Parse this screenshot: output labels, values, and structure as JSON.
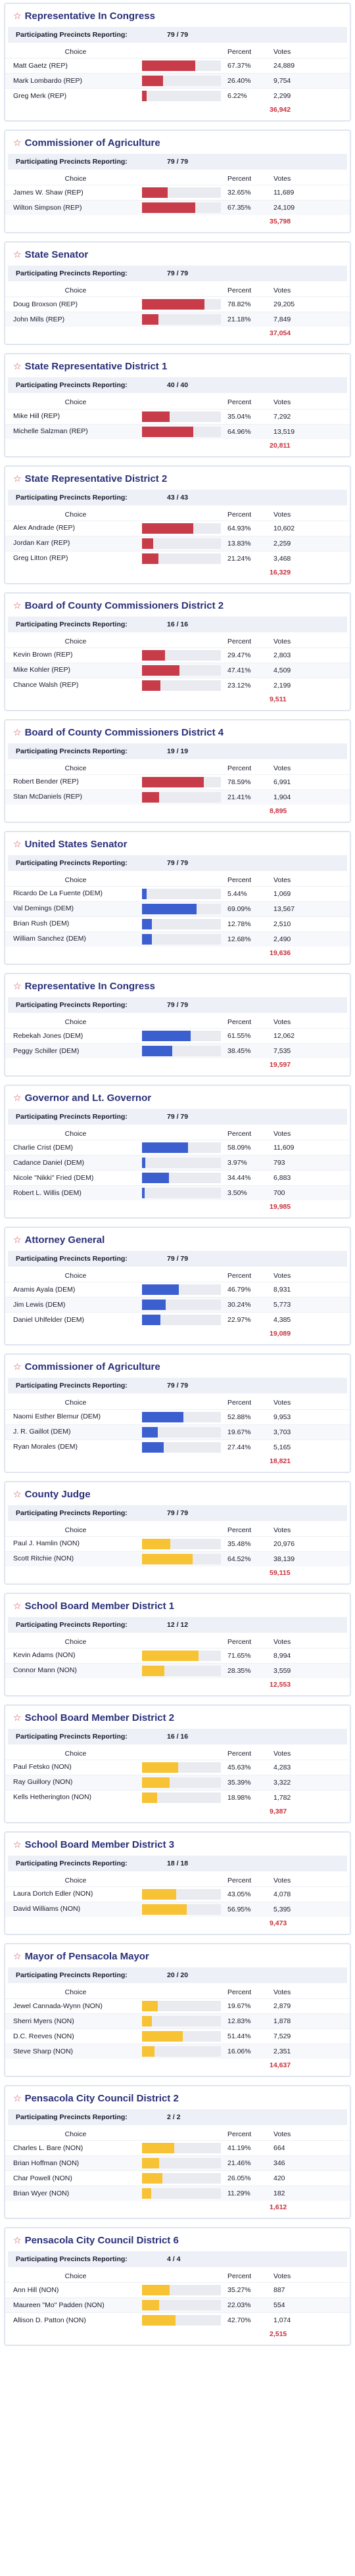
{
  "labels": {
    "precincts_label": "Participating Precincts Reporting:",
    "choice": "Choice",
    "percent": "Percent",
    "votes": "Votes"
  },
  "colors": {
    "REP": "#c83c4a",
    "DEM": "#3c5fd0",
    "NON": "#f7c233"
  },
  "races": [
    {
      "title": "Representative In Congress",
      "precincts": "79 / 79",
      "party": "REP",
      "total": "36,942",
      "candidates": [
        {
          "name": "Matt Gaetz (REP)",
          "percent": "67.37%",
          "pct": 67.37,
          "votes": "24,889"
        },
        {
          "name": "Mark Lombardo (REP)",
          "percent": "26.40%",
          "pct": 26.4,
          "votes": "9,754"
        },
        {
          "name": "Greg Merk (REP)",
          "percent": "6.22%",
          "pct": 6.22,
          "votes": "2,299"
        }
      ]
    },
    {
      "title": "Commissioner of Agriculture",
      "precincts": "79 / 79",
      "party": "REP",
      "total": "35,798",
      "candidates": [
        {
          "name": "James W. Shaw (REP)",
          "percent": "32.65%",
          "pct": 32.65,
          "votes": "11,689"
        },
        {
          "name": "Wilton Simpson (REP)",
          "percent": "67.35%",
          "pct": 67.35,
          "votes": "24,109"
        }
      ]
    },
    {
      "title": "State Senator",
      "precincts": "79 / 79",
      "party": "REP",
      "total": "37,054",
      "candidates": [
        {
          "name": "Doug Broxson (REP)",
          "percent": "78.82%",
          "pct": 78.82,
          "votes": "29,205"
        },
        {
          "name": "John Mills (REP)",
          "percent": "21.18%",
          "pct": 21.18,
          "votes": "7,849"
        }
      ]
    },
    {
      "title": "State Representative District 1",
      "precincts": "40 / 40",
      "party": "REP",
      "total": "20,811",
      "candidates": [
        {
          "name": "Mike Hill (REP)",
          "percent": "35.04%",
          "pct": 35.04,
          "votes": "7,292"
        },
        {
          "name": "Michelle Salzman (REP)",
          "percent": "64.96%",
          "pct": 64.96,
          "votes": "13,519"
        }
      ]
    },
    {
      "title": "State Representative District 2",
      "precincts": "43 / 43",
      "party": "REP",
      "total": "16,329",
      "candidates": [
        {
          "name": "Alex Andrade (REP)",
          "percent": "64.93%",
          "pct": 64.93,
          "votes": "10,602"
        },
        {
          "name": "Jordan Karr (REP)",
          "percent": "13.83%",
          "pct": 13.83,
          "votes": "2,259"
        },
        {
          "name": "Greg Litton (REP)",
          "percent": "21.24%",
          "pct": 21.24,
          "votes": "3,468"
        }
      ]
    },
    {
      "title": "Board of County Commissioners District 2",
      "precincts": "16 / 16",
      "party": "REP",
      "total": "9,511",
      "candidates": [
        {
          "name": "Kevin Brown (REP)",
          "percent": "29.47%",
          "pct": 29.47,
          "votes": "2,803"
        },
        {
          "name": "Mike Kohler (REP)",
          "percent": "47.41%",
          "pct": 47.41,
          "votes": "4,509"
        },
        {
          "name": "Chance Walsh (REP)",
          "percent": "23.12%",
          "pct": 23.12,
          "votes": "2,199"
        }
      ]
    },
    {
      "title": "Board of County Commissioners District 4",
      "precincts": "19 / 19",
      "party": "REP",
      "total": "8,895",
      "candidates": [
        {
          "name": "Robert Bender (REP)",
          "percent": "78.59%",
          "pct": 78.59,
          "votes": "6,991"
        },
        {
          "name": "Stan McDaniels (REP)",
          "percent": "21.41%",
          "pct": 21.41,
          "votes": "1,904"
        }
      ]
    },
    {
      "title": "United States Senator",
      "precincts": "79 / 79",
      "party": "DEM",
      "total": "19,636",
      "candidates": [
        {
          "name": "Ricardo De La Fuente (DEM)",
          "percent": "5.44%",
          "pct": 5.44,
          "votes": "1,069"
        },
        {
          "name": "Val Demings (DEM)",
          "percent": "69.09%",
          "pct": 69.09,
          "votes": "13,567"
        },
        {
          "name": "Brian Rush (DEM)",
          "percent": "12.78%",
          "pct": 12.78,
          "votes": "2,510"
        },
        {
          "name": "William Sanchez (DEM)",
          "percent": "12.68%",
          "pct": 12.68,
          "votes": "2,490"
        }
      ]
    },
    {
      "title": "Representative In Congress",
      "precincts": "79 / 79",
      "party": "DEM",
      "total": "19,597",
      "candidates": [
        {
          "name": "Rebekah Jones (DEM)",
          "percent": "61.55%",
          "pct": 61.55,
          "votes": "12,062"
        },
        {
          "name": "Peggy Schiller (DEM)",
          "percent": "38.45%",
          "pct": 38.45,
          "votes": "7,535"
        }
      ]
    },
    {
      "title": "Governor and Lt. Governor",
      "precincts": "79 / 79",
      "party": "DEM",
      "total": "19,985",
      "candidates": [
        {
          "name": "Charlie Crist (DEM)",
          "percent": "58.09%",
          "pct": 58.09,
          "votes": "11,609"
        },
        {
          "name": "Cadance Daniel (DEM)",
          "percent": "3.97%",
          "pct": 3.97,
          "votes": "793"
        },
        {
          "name": "Nicole \"Nikki\" Fried (DEM)",
          "percent": "34.44%",
          "pct": 34.44,
          "votes": "6,883"
        },
        {
          "name": "Robert L. Willis (DEM)",
          "percent": "3.50%",
          "pct": 3.5,
          "votes": "700"
        }
      ]
    },
    {
      "title": "Attorney General",
      "precincts": "79 / 79",
      "party": "DEM",
      "total": "19,089",
      "candidates": [
        {
          "name": "Aramis Ayala (DEM)",
          "percent": "46.79%",
          "pct": 46.79,
          "votes": "8,931"
        },
        {
          "name": "Jim Lewis (DEM)",
          "percent": "30.24%",
          "pct": 30.24,
          "votes": "5,773"
        },
        {
          "name": "Daniel Uhlfelder (DEM)",
          "percent": "22.97%",
          "pct": 22.97,
          "votes": "4,385"
        }
      ]
    },
    {
      "title": "Commissioner of Agriculture",
      "precincts": "79 / 79",
      "party": "DEM",
      "total": "18,821",
      "candidates": [
        {
          "name": "Naomi Esther Blemur (DEM)",
          "percent": "52.88%",
          "pct": 52.88,
          "votes": "9,953"
        },
        {
          "name": "J. R. Gaillot (DEM)",
          "percent": "19.67%",
          "pct": 19.67,
          "votes": "3,703"
        },
        {
          "name": "Ryan Morales (DEM)",
          "percent": "27.44%",
          "pct": 27.44,
          "votes": "5,165"
        }
      ]
    },
    {
      "title": "County Judge",
      "precincts": "79 / 79",
      "party": "NON",
      "total": "59,115",
      "candidates": [
        {
          "name": "Paul J. Hamlin (NON)",
          "percent": "35.48%",
          "pct": 35.48,
          "votes": "20,976"
        },
        {
          "name": "Scott Ritchie (NON)",
          "percent": "64.52%",
          "pct": 64.52,
          "votes": "38,139"
        }
      ]
    },
    {
      "title": "School Board Member District 1",
      "precincts": "12 / 12",
      "party": "NON",
      "total": "12,553",
      "candidates": [
        {
          "name": "Kevin Adams (NON)",
          "percent": "71.65%",
          "pct": 71.65,
          "votes": "8,994"
        },
        {
          "name": "Connor Mann (NON)",
          "percent": "28.35%",
          "pct": 28.35,
          "votes": "3,559"
        }
      ]
    },
    {
      "title": "School Board Member District 2",
      "precincts": "16 / 16",
      "party": "NON",
      "total": "9,387",
      "candidates": [
        {
          "name": "Paul Fetsko (NON)",
          "percent": "45.63%",
          "pct": 45.63,
          "votes": "4,283"
        },
        {
          "name": "Ray Guillory (NON)",
          "percent": "35.39%",
          "pct": 35.39,
          "votes": "3,322"
        },
        {
          "name": "Kells Hetherington (NON)",
          "percent": "18.98%",
          "pct": 18.98,
          "votes": "1,782"
        }
      ]
    },
    {
      "title": "School Board Member District 3",
      "precincts": "18 / 18",
      "party": "NON",
      "total": "9,473",
      "candidates": [
        {
          "name": "Laura Dortch Edler (NON)",
          "percent": "43.05%",
          "pct": 43.05,
          "votes": "4,078"
        },
        {
          "name": "David Williams (NON)",
          "percent": "56.95%",
          "pct": 56.95,
          "votes": "5,395"
        }
      ]
    },
    {
      "title": "Mayor of Pensacola Mayor",
      "precincts": "20 / 20",
      "party": "NON",
      "total": "14,637",
      "candidates": [
        {
          "name": "Jewel Cannada-Wynn (NON)",
          "percent": "19.67%",
          "pct": 19.67,
          "votes": "2,879"
        },
        {
          "name": "Sherri Myers (NON)",
          "percent": "12.83%",
          "pct": 12.83,
          "votes": "1,878"
        },
        {
          "name": "D.C. Reeves (NON)",
          "percent": "51.44%",
          "pct": 51.44,
          "votes": "7,529"
        },
        {
          "name": "Steve Sharp (NON)",
          "percent": "16.06%",
          "pct": 16.06,
          "votes": "2,351"
        }
      ]
    },
    {
      "title": "Pensacola City Council District 2",
      "precincts": "2 / 2",
      "party": "NON",
      "total": "1,612",
      "candidates": [
        {
          "name": "Charles L. Bare (NON)",
          "percent": "41.19%",
          "pct": 41.19,
          "votes": "664"
        },
        {
          "name": "Brian Hoffman (NON)",
          "percent": "21.46%",
          "pct": 21.46,
          "votes": "346"
        },
        {
          "name": "Char Powell (NON)",
          "percent": "26.05%",
          "pct": 26.05,
          "votes": "420"
        },
        {
          "name": "Brian Wyer (NON)",
          "percent": "11.29%",
          "pct": 11.29,
          "votes": "182"
        }
      ]
    },
    {
      "title": "Pensacola City Council District 6",
      "precincts": "4 / 4",
      "party": "NON",
      "total": "2,515",
      "candidates": [
        {
          "name": "Ann Hill (NON)",
          "percent": "35.27%",
          "pct": 35.27,
          "votes": "887"
        },
        {
          "name": "Maureen \"Mo\" Padden (NON)",
          "percent": "22.03%",
          "pct": 22.03,
          "votes": "554"
        },
        {
          "name": "Allison D. Patton (NON)",
          "percent": "42.70%",
          "pct": 42.7,
          "votes": "1,074"
        }
      ]
    }
  ]
}
